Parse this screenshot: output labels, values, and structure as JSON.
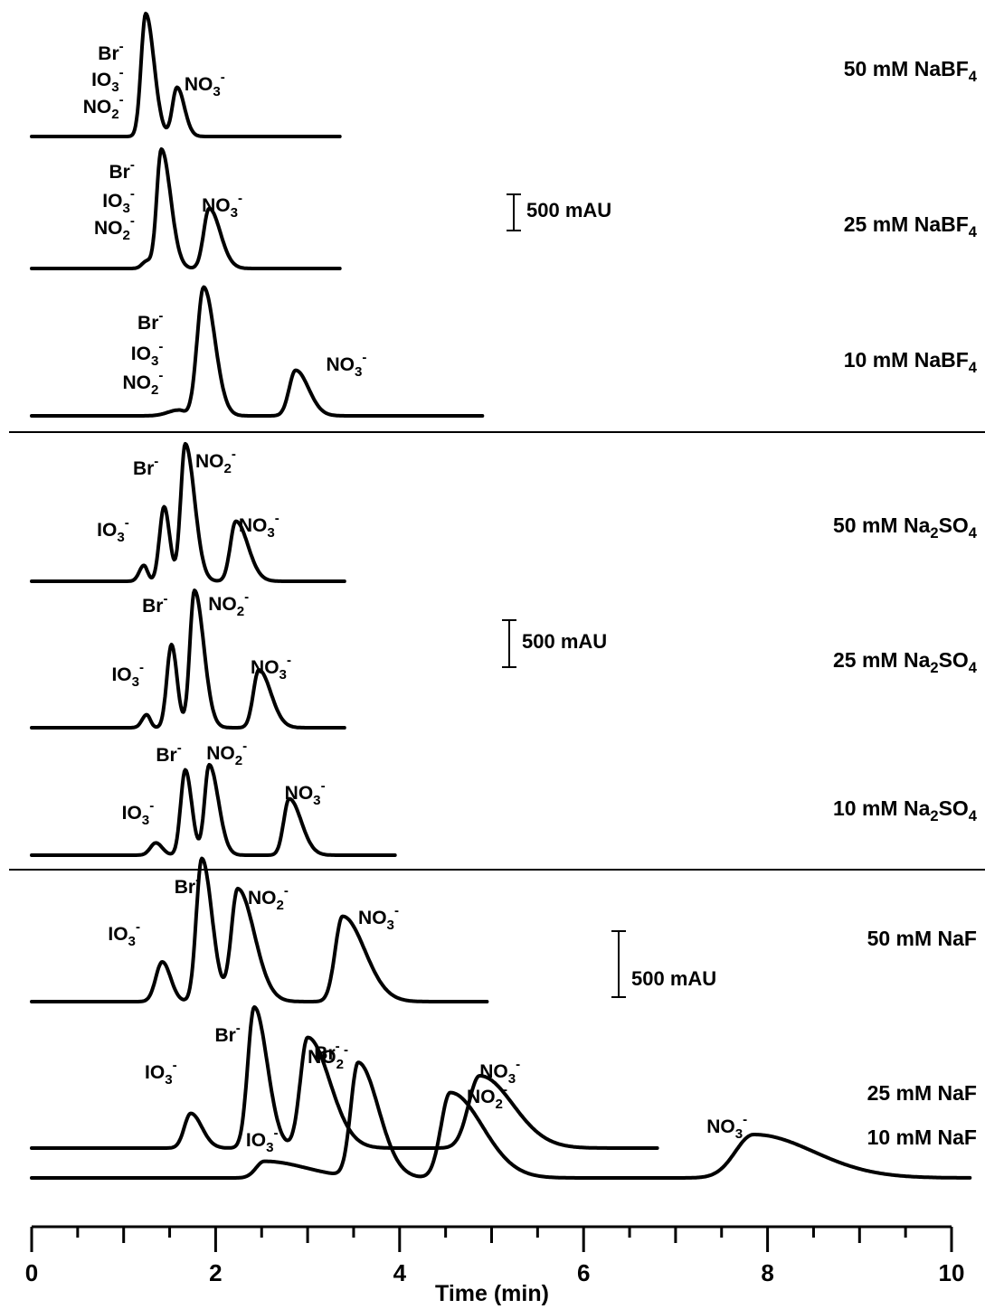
{
  "chart_data": {
    "type": "line",
    "xlabel": "Time (min)",
    "xlim": [
      0,
      10
    ],
    "x_ticks": [
      "0",
      "2",
      "4",
      "6",
      "8",
      "10"
    ],
    "scale_bar": "500 mAU",
    "groups": [
      {
        "name": "NaBF4",
        "scale_label": "500 mAU",
        "traces": [
          {
            "label": "50 mM NaBF<sub>4</sub>",
            "x_end": 3.35,
            "peaks": [
              {
                "x": 1.24,
                "h": 1.7,
                "wl": 0.05,
                "wr": 0.09,
                "ion": "Br<sup>-</sup>"
              },
              {
                "x": 1.58,
                "h": 0.68,
                "wl": 0.05,
                "wr": 0.08,
                "ion": "NO<sub>3</sub><sup>-</sup>"
              }
            ],
            "labels": [
              {
                "text": "Br<sup>-</sup>"
              },
              {
                "text": "IO<sub>3</sub><sup>-</sup>"
              },
              {
                "text": "NO<sub>2</sub><sup>-</sup>"
              },
              {
                "text": "NO<sub>3</sub><sup>-</sup>"
              }
            ]
          },
          {
            "label": "25 mM NaBF<sub>4</sub>",
            "x_end": 3.35,
            "peaks": [
              {
                "x": 1.25,
                "h": 0.1,
                "wl": 0.05,
                "wr": 0.05,
                "ion": ""
              },
              {
                "x": 1.41,
                "h": 1.65,
                "wl": 0.05,
                "wr": 0.1,
                "ion": "Br<sup>-</sup>"
              },
              {
                "x": 1.93,
                "h": 0.83,
                "wl": 0.06,
                "wr": 0.12,
                "ion": "NO<sub>3</sub><sup>-</sup>"
              }
            ],
            "labels": [
              {
                "text": "Br<sup>-</sup>"
              },
              {
                "text": "IO<sub>3</sub><sup>-</sup>"
              },
              {
                "text": "NO<sub>2</sub><sup>-</sup>"
              },
              {
                "text": "NO<sub>3</sub><sup>-</sup>"
              }
            ]
          },
          {
            "label": "10 mM NaBF<sub>4</sub>",
            "x_end": 4.9,
            "peaks": [
              {
                "x": 1.6,
                "h": 0.08,
                "wl": 0.12,
                "wr": 0.06,
                "ion": ""
              },
              {
                "x": 1.87,
                "h": 1.78,
                "wl": 0.07,
                "wr": 0.12,
                "ion": "Br<sup>-</sup>"
              },
              {
                "x": 2.87,
                "h": 0.63,
                "wl": 0.07,
                "wr": 0.14,
                "ion": "NO<sub>3</sub><sup>-</sup>"
              }
            ],
            "labels": [
              {
                "text": "Br<sup>-</sup>"
              },
              {
                "text": "IO<sub>3</sub><sup>-</sup>"
              },
              {
                "text": "NO<sub>2</sub><sup>-</sup>"
              },
              {
                "text": "NO<sub>3</sub><sup>-</sup>"
              }
            ]
          }
        ]
      },
      {
        "name": "Na2SO4",
        "scale_label": "500 mAU",
        "traces": [
          {
            "label": "50 mM Na<sub>2</sub>SO<sub>4</sub>",
            "x_end": 3.4,
            "peaks": [
              {
                "x": 1.22,
                "h": 0.22,
                "wl": 0.05,
                "wr": 0.04,
                "ion": "IO<sub>3</sub><sup>-</sup>"
              },
              {
                "x": 1.44,
                "h": 1.03,
                "wl": 0.05,
                "wr": 0.06,
                "ion": "Br<sup>-</sup>"
              },
              {
                "x": 1.67,
                "h": 1.9,
                "wl": 0.05,
                "wr": 0.1,
                "ion": "NO<sub>2</sub><sup>-</sup>"
              },
              {
                "x": 2.22,
                "h": 0.83,
                "wl": 0.06,
                "wr": 0.13,
                "ion": "NO<sub>3</sub><sup>-</sup>"
              }
            ],
            "labels": [
              {
                "text": "IO<sub>3</sub><sup>-</sup>"
              },
              {
                "text": "Br<sup>-</sup>"
              },
              {
                "text": "NO<sub>2</sub><sup>-</sup>"
              },
              {
                "text": "NO<sub>3</sub><sup>-</sup>"
              }
            ]
          },
          {
            "label": "25 mM Na<sub>2</sub>SO<sub>4</sub>",
            "x_end": 3.4,
            "peaks": [
              {
                "x": 1.25,
                "h": 0.18,
                "wl": 0.05,
                "wr": 0.04,
                "ion": "IO<sub>3</sub><sup>-</sup>"
              },
              {
                "x": 1.52,
                "h": 1.15,
                "wl": 0.05,
                "wr": 0.06,
                "ion": "Br<sup>-</sup>"
              },
              {
                "x": 1.77,
                "h": 1.9,
                "wl": 0.05,
                "wr": 0.1,
                "ion": "NO<sub>2</sub><sup>-</sup>"
              },
              {
                "x": 2.47,
                "h": 0.8,
                "wl": 0.06,
                "wr": 0.13,
                "ion": "NO<sub>3</sub><sup>-</sup>"
              }
            ],
            "labels": [
              {
                "text": "IO<sub>3</sub><sup>-</sup>"
              },
              {
                "text": "Br<sup>-</sup>"
              },
              {
                "text": "NO<sub>2</sub><sup>-</sup>"
              },
              {
                "text": "NO<sub>3</sub><sup>-</sup>"
              }
            ]
          },
          {
            "label": "10 mM Na<sub>2</sub>SO<sub>4</sub>",
            "x_end": 3.95,
            "peaks": [
              {
                "x": 1.35,
                "h": 0.17,
                "wl": 0.06,
                "wr": 0.07,
                "ion": "IO<sub>3</sub><sup>-</sup>"
              },
              {
                "x": 1.67,
                "h": 1.18,
                "wl": 0.05,
                "wr": 0.07,
                "ion": "Br<sup>-</sup>"
              },
              {
                "x": 1.93,
                "h": 1.25,
                "wl": 0.05,
                "wr": 0.1,
                "ion": "NO<sub>2</sub><sup>-</sup>"
              },
              {
                "x": 2.8,
                "h": 0.78,
                "wl": 0.06,
                "wr": 0.13,
                "ion": "NO<sub>3</sub><sup>-</sup>"
              }
            ],
            "labels": [
              {
                "text": "IO<sub>3</sub><sup>-</sup>"
              },
              {
                "text": "Br<sup>-</sup>"
              },
              {
                "text": "NO<sub>2</sub><sup>-</sup>"
              },
              {
                "text": "NO<sub>3</sub><sup>-</sup>"
              }
            ]
          }
        ]
      },
      {
        "name": "NaF",
        "scale_label": "500 mAU",
        "traces": [
          {
            "label": "50 mM NaF",
            "x_end": 4.95,
            "peaks": [
              {
                "x": 1.42,
                "h": 0.55,
                "wl": 0.07,
                "wr": 0.09,
                "ion": "IO<sub>3</sub><sup>-</sup>"
              },
              {
                "x": 1.85,
                "h": 1.98,
                "wl": 0.06,
                "wr": 0.11,
                "ion": "Br<sup>-</sup>"
              },
              {
                "x": 2.24,
                "h": 1.56,
                "wl": 0.07,
                "wr": 0.18,
                "ion": "NO<sub>2</sub><sup>-</sup>"
              },
              {
                "x": 3.38,
                "h": 1.18,
                "wl": 0.08,
                "wr": 0.24,
                "ion": "NO<sub>3</sub><sup>-</sup>"
              }
            ],
            "labels": [
              {
                "text": "IO<sub>3</sub><sup>-</sup>"
              },
              {
                "text": "Br<sup>-</sup>"
              },
              {
                "text": "NO<sub>2</sub><sup>-</sup>"
              },
              {
                "text": "NO<sub>3</sub><sup>-</sup>"
              }
            ]
          },
          {
            "label": "25 mM NaF",
            "x_end": 6.8,
            "peaks": [
              {
                "x": 1.73,
                "h": 0.48,
                "wl": 0.07,
                "wr": 0.12,
                "ion": "IO<sub>3</sub><sup>-</sup>"
              },
              {
                "x": 2.42,
                "h": 1.95,
                "wl": 0.07,
                "wr": 0.14,
                "ion": "Br<sup>-</sup>"
              },
              {
                "x": 3.0,
                "h": 1.53,
                "wl": 0.08,
                "wr": 0.24,
                "ion": "NO<sub>2</sub><sup>-</sup>"
              },
              {
                "x": 4.87,
                "h": 1.0,
                "wl": 0.12,
                "wr": 0.36,
                "ion": "NO<sub>3</sub><sup>-</sup>"
              }
            ],
            "labels": [
              {
                "text": "IO<sub>3</sub><sup>-</sup>"
              },
              {
                "text": "Br<sup>-</sup>"
              },
              {
                "text": "NO<sub>2</sub><sup>-</sup>"
              },
              {
                "text": "NO<sub>3</sub><sup>-</sup>"
              }
            ]
          },
          {
            "label": "10 mM NaF",
            "x_end": 10.2,
            "peaks": [
              {
                "x": 2.53,
                "h": 0.23,
                "wl": 0.09,
                "wr": 0.45,
                "ion": "IO<sub>3</sub><sup>-</sup>"
              },
              {
                "x": 3.55,
                "h": 1.58,
                "wl": 0.08,
                "wr": 0.22,
                "ion": "Br<sup>-</sup>"
              },
              {
                "x": 4.55,
                "h": 1.18,
                "wl": 0.1,
                "wr": 0.35,
                "ion": "NO<sub>2</sub><sup>-</sup>"
              },
              {
                "x": 7.85,
                "h": 0.6,
                "wl": 0.2,
                "wr": 0.65,
                "ion": "NO<sub>3</sub><sup>-</sup>"
              }
            ],
            "labels": [
              {
                "text": "IO<sub>3</sub><sup>-</sup>"
              },
              {
                "text": "Br<sup>-</sup>"
              },
              {
                "text": "NO<sub>2</sub><sup>-</sup>"
              },
              {
                "text": "NO<sub>3</sub><sup>-</sup>"
              }
            ]
          }
        ]
      }
    ]
  }
}
